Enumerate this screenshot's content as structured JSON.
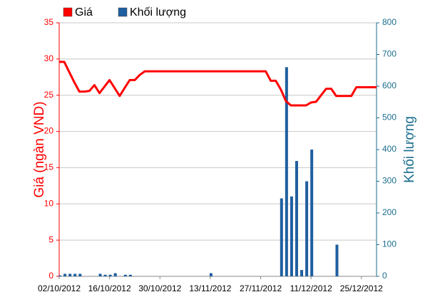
{
  "chart_data": {
    "type": "bar-line",
    "categories": [
      "02/10/2012",
      null,
      null,
      null,
      null,
      null,
      null,
      null,
      null,
      null,
      "16/10/2012",
      null,
      null,
      null,
      null,
      null,
      null,
      null,
      null,
      null,
      "30/10/2012",
      null,
      null,
      null,
      null,
      null,
      null,
      null,
      null,
      null,
      "13/11/2012",
      null,
      null,
      null,
      null,
      null,
      null,
      null,
      null,
      null,
      "27/11/2012",
      null,
      null,
      null,
      null,
      null,
      null,
      null,
      null,
      null,
      "11/12/2012",
      null,
      null,
      null,
      null,
      null,
      null,
      null,
      null,
      null,
      "25/12/2012",
      null,
      null,
      null
    ],
    "series": [
      {
        "name": "Giá",
        "color": "#ff0000",
        "type": "line",
        "values": [
          29.6,
          29.6,
          28.2,
          26.8,
          25.5,
          25.5,
          25.6,
          26.4,
          25.3,
          26.2,
          27.1,
          26.0,
          24.9,
          26.0,
          27.1,
          27.1,
          27.8,
          28.3,
          28.3,
          28.3,
          28.3,
          28.3,
          28.3,
          28.3,
          28.3,
          28.3,
          28.3,
          28.3,
          28.3,
          28.3,
          28.3,
          28.3,
          28.3,
          28.3,
          28.3,
          28.3,
          28.3,
          28.3,
          28.3,
          28.3,
          28.3,
          28.3,
          27.0,
          27.0,
          25.8,
          24.2,
          23.6,
          23.6,
          23.6,
          23.6,
          24.0,
          24.1,
          25.0,
          25.9,
          25.9,
          24.9,
          24.9,
          24.9,
          24.9,
          26.1,
          26.1,
          26.1,
          26.1,
          26.1
        ]
      },
      {
        "name": "Khối lượng",
        "color": "#1f5f9f",
        "type": "bar",
        "axis": "y2",
        "values": [
          3,
          8,
          8,
          8,
          8,
          0,
          0,
          0,
          8,
          5,
          5,
          10,
          0,
          5,
          5,
          0,
          0,
          0,
          0,
          0,
          0,
          0,
          0,
          0,
          0,
          0,
          0,
          0,
          0,
          0,
          10,
          0,
          0,
          0,
          0,
          0,
          0,
          0,
          0,
          0,
          0,
          0,
          0,
          0,
          246,
          660,
          252,
          364,
          20,
          300,
          400,
          0,
          0,
          0,
          0,
          100,
          0,
          0,
          0,
          0,
          0,
          0,
          0,
          0
        ]
      }
    ],
    "y_label": "Giá (ngàn VND)",
    "y2_label": "Khối lượng",
    "ylim": [
      0,
      35
    ],
    "yticks": [
      0,
      5,
      10,
      15,
      20,
      25,
      30,
      35
    ],
    "y2lim": [
      0,
      800
    ],
    "y2ticks": [
      0,
      100,
      200,
      300,
      400,
      500,
      600,
      700,
      800
    ],
    "grid": true
  }
}
